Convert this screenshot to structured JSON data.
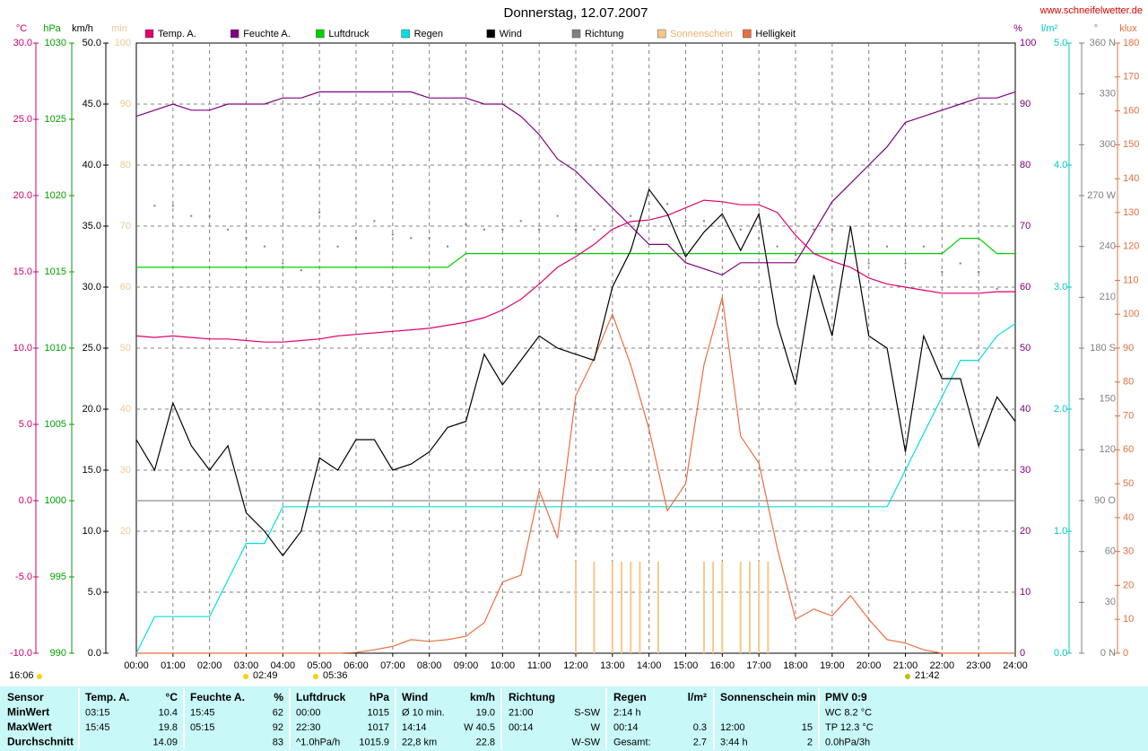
{
  "chart_data": {
    "type": "multiaxis",
    "title": "Donnerstag, 12.07.2007",
    "source": "www.schneifelwetter.de",
    "xlim": [
      0,
      24
    ],
    "xticks": [
      {
        "value": 0,
        "label": "00:00"
      },
      {
        "value": 1,
        "label": "01:00"
      },
      {
        "value": 2,
        "label": "02:00"
      },
      {
        "value": 3,
        "label": "03:00"
      },
      {
        "value": 4,
        "label": "04:00"
      },
      {
        "value": 5,
        "label": "05:00"
      },
      {
        "value": 6,
        "label": "06:00"
      },
      {
        "value": 7,
        "label": "07:00"
      },
      {
        "value": 8,
        "label": "08:00"
      },
      {
        "value": 9,
        "label": "09:00"
      },
      {
        "value": 10,
        "label": "10:00"
      },
      {
        "value": 11,
        "label": "11:00"
      },
      {
        "value": 12,
        "label": "12:00"
      },
      {
        "value": 13,
        "label": "13:00"
      },
      {
        "value": 14,
        "label": "14:00"
      },
      {
        "value": 15,
        "label": "15:00"
      },
      {
        "value": 16,
        "label": "16:00"
      },
      {
        "value": 17,
        "label": "17:00"
      },
      {
        "value": 18,
        "label": "18:00"
      },
      {
        "value": 19,
        "label": "19:00"
      },
      {
        "value": 20,
        "label": "20:00"
      },
      {
        "value": 21,
        "label": "21:00"
      },
      {
        "value": 22,
        "label": "22:00"
      },
      {
        "value": 23,
        "label": "23:00"
      },
      {
        "value": 24,
        "label": "24:00"
      }
    ],
    "grid": true,
    "axes": [
      {
        "label": "°C",
        "color": "#d0006f",
        "lim": [
          -10,
          30
        ],
        "ticks": [
          {
            "value": -10,
            "label": "-10.0"
          },
          {
            "value": -5,
            "label": "-5.0"
          },
          {
            "value": 0,
            "label": "0.0"
          },
          {
            "value": 5,
            "label": "5.0"
          },
          {
            "value": 10,
            "label": "10.0"
          },
          {
            "value": 15,
            "label": "15.0"
          },
          {
            "value": 20,
            "label": "20.0"
          },
          {
            "value": 25,
            "label": "25.0"
          },
          {
            "value": 30,
            "label": "30.0"
          }
        ]
      },
      {
        "label": "hPa",
        "color": "#00a000",
        "lim": [
          990,
          1030
        ],
        "ticks": [
          990,
          995,
          1000,
          1005,
          1010,
          1015,
          1020,
          1025,
          1030
        ]
      },
      {
        "label": "km/h",
        "color": "#000000",
        "lim": [
          0,
          50
        ],
        "ticks": [
          {
            "value": 0,
            "label": "0.0"
          },
          {
            "value": 5,
            "label": "5.0"
          },
          {
            "value": 10,
            "label": "10.0"
          },
          {
            "value": 15,
            "label": "15.0"
          },
          {
            "value": 20,
            "label": "20.0"
          },
          {
            "value": 25,
            "label": "25.0"
          },
          {
            "value": 30,
            "label": "30.0"
          },
          {
            "value": 35,
            "label": "35.0"
          },
          {
            "value": 40,
            "label": "40.0"
          },
          {
            "value": 45,
            "label": "45.0"
          },
          {
            "value": 50,
            "label": "50.0"
          }
        ]
      },
      {
        "label": "min",
        "color": "#f0c890",
        "lim": [
          0,
          100
        ],
        "ticks": [
          20,
          30,
          40,
          50,
          60,
          70,
          80,
          90,
          100
        ]
      },
      {
        "label": "%",
        "color": "#800080",
        "lim": [
          0,
          100
        ],
        "ticks": [
          0,
          10,
          20,
          30,
          40,
          50,
          60,
          70,
          80,
          90,
          100
        ]
      },
      {
        "label": "l/m²",
        "color": "#00c8c8",
        "lim": [
          0,
          5
        ],
        "ticks": [
          {
            "value": 0,
            "label": "0.0"
          },
          {
            "value": 1,
            "label": "1.0"
          },
          {
            "value": 2,
            "label": "2.0"
          },
          {
            "value": 3,
            "label": "3.0"
          },
          {
            "value": 4,
            "label": "4.0"
          },
          {
            "value": 5,
            "label": "5.0"
          }
        ]
      },
      {
        "label": "°",
        "color": "#808080",
        "lim": [
          0,
          360
        ],
        "ticks": [
          {
            "value": 0,
            "label": "0 N"
          },
          30,
          60,
          {
            "value": 90,
            "label": "90 O"
          },
          120,
          150,
          {
            "value": 180,
            "label": "180 S"
          },
          210,
          240,
          {
            "value": 270,
            "label": "270 W"
          },
          300,
          330,
          {
            "value": 360,
            "label": "360 N"
          }
        ]
      },
      {
        "label": "klux",
        "color": "#e07040",
        "lim": [
          0,
          180
        ],
        "ticks": [
          0,
          10,
          20,
          30,
          40,
          50,
          60,
          70,
          80,
          90,
          100,
          110,
          120,
          130,
          140,
          150,
          160,
          170,
          180
        ]
      }
    ],
    "x": [
      0,
      0.5,
      1,
      1.5,
      2,
      2.5,
      3,
      3.5,
      4,
      4.5,
      5,
      5.5,
      6,
      6.5,
      7,
      7.5,
      8,
      8.5,
      9,
      9.5,
      10,
      10.5,
      11,
      11.5,
      12,
      12.5,
      13,
      13.5,
      14,
      14.5,
      15,
      15.5,
      16,
      16.5,
      17,
      17.5,
      18,
      18.5,
      19,
      19.5,
      20,
      20.5,
      21,
      21.5,
      22,
      22.5,
      23,
      23.5,
      24
    ],
    "series": [
      {
        "name": "Temp. A.",
        "color": "#e0006f",
        "axis": 0,
        "style": "line",
        "values": [
          10.8,
          10.7,
          10.8,
          10.7,
          10.6,
          10.6,
          10.5,
          10.4,
          10.4,
          10.5,
          10.6,
          10.8,
          10.9,
          11.0,
          11.1,
          11.2,
          11.3,
          11.5,
          11.7,
          12.0,
          12.5,
          13.2,
          14.2,
          15.3,
          16.0,
          16.8,
          17.8,
          18.3,
          18.4,
          18.7,
          19.2,
          19.7,
          19.6,
          19.4,
          19.4,
          18.9,
          17.4,
          16.2,
          15.7,
          15.3,
          14.6,
          14.2,
          14.0,
          13.8,
          13.6,
          13.6,
          13.6,
          13.7,
          13.7
        ]
      },
      {
        "name": "Feuchte A.",
        "color": "#800080",
        "axis": 4,
        "style": "line",
        "values": [
          88,
          89,
          90,
          89,
          89,
          90,
          90,
          90,
          91,
          91,
          92,
          92,
          92,
          92,
          92,
          92,
          91,
          91,
          91,
          90,
          90,
          88,
          85,
          81,
          79,
          76,
          73,
          70,
          67,
          67,
          64,
          63,
          62,
          64,
          64,
          64,
          64,
          69,
          74,
          77,
          80,
          83,
          87,
          88,
          89,
          90,
          91,
          91,
          92
        ]
      },
      {
        "name": "Luftdruck",
        "color": "#00d000",
        "axis": 1,
        "style": "line",
        "values": [
          1015.3,
          1015.3,
          1015.3,
          1015.3,
          1015.3,
          1015.3,
          1015.3,
          1015.3,
          1015.3,
          1015.3,
          1015.3,
          1015.3,
          1015.3,
          1015.3,
          1015.3,
          1015.3,
          1015.3,
          1015.3,
          1016.2,
          1016.2,
          1016.2,
          1016.2,
          1016.2,
          1016.2,
          1016.2,
          1016.2,
          1016.2,
          1016.2,
          1016.2,
          1016.2,
          1016.2,
          1016.2,
          1016.2,
          1016.2,
          1016.2,
          1016.2,
          1016.2,
          1016.2,
          1016.2,
          1016.2,
          1016.2,
          1016.2,
          1016.2,
          1016.2,
          1016.2,
          1017.2,
          1017.2,
          1016.2,
          1016.2
        ]
      },
      {
        "name": "Regen",
        "color": "#00e0e0",
        "axis": 5,
        "style": "line",
        "values": [
          0,
          0.3,
          0.3,
          0.3,
          0.3,
          0.6,
          0.9,
          0.9,
          1.2,
          1.2,
          1.2,
          1.2,
          1.2,
          1.2,
          1.2,
          1.2,
          1.2,
          1.2,
          1.2,
          1.2,
          1.2,
          1.2,
          1.2,
          1.2,
          1.2,
          1.2,
          1.2,
          1.2,
          1.2,
          1.2,
          1.2,
          1.2,
          1.2,
          1.2,
          1.2,
          1.2,
          1.2,
          1.2,
          1.2,
          1.2,
          1.2,
          1.2,
          1.5,
          1.8,
          2.1,
          2.4,
          2.4,
          2.6,
          2.7
        ]
      },
      {
        "name": "Wind",
        "color": "#000000",
        "axis": 2,
        "style": "line",
        "values": [
          17.5,
          15,
          20.5,
          17,
          15,
          17,
          11.5,
          10,
          8,
          10,
          16,
          15,
          17.5,
          17.5,
          15,
          15.5,
          16.5,
          18.5,
          19,
          24.5,
          22,
          24,
          26,
          25,
          24.5,
          24,
          30,
          33,
          38,
          36,
          32.5,
          34.5,
          36,
          33,
          36,
          27,
          22,
          31,
          26,
          35,
          26,
          25,
          16.5,
          26,
          22.5,
          22.5,
          17,
          21,
          19
        ]
      },
      {
        "name": "Richtung",
        "color": "#808080",
        "axis": 6,
        "style": "points",
        "values": [
          270,
          264,
          264,
          258,
          258,
          250,
          245,
          240,
          230,
          226,
          260,
          240,
          245,
          255,
          247,
          245,
          245,
          240,
          253,
          250,
          250,
          255,
          250,
          258,
          250,
          250,
          255,
          258,
          265,
          265,
          255,
          255,
          258,
          250,
          245,
          240,
          235,
          250,
          250,
          240,
          230,
          240,
          230,
          240,
          225,
          230,
          225,
          215,
          220
        ]
      },
      {
        "name": "Sonnenschein",
        "color": "#f8c888",
        "axis": 3,
        "style": "bars",
        "x": [
          12,
          12.5,
          13,
          13.25,
          13.5,
          13.75,
          14.25,
          15.5,
          15.75,
          16,
          16.5,
          16.75,
          17,
          17.25
        ],
        "values": [
          15,
          15,
          15,
          15,
          15,
          15,
          15,
          15,
          15,
          15,
          15,
          15,
          15,
          15
        ]
      },
      {
        "name": "Helligkeit",
        "color": "#e87040",
        "axis": 7,
        "style": "line",
        "values": [
          0,
          0,
          0,
          0,
          0,
          0,
          0,
          0,
          0,
          0,
          0,
          0,
          0.2,
          1,
          2,
          4,
          3.5,
          4,
          5,
          9,
          21,
          23,
          48,
          34,
          76,
          87,
          100,
          85,
          66,
          42,
          50,
          85,
          105,
          64,
          56,
          31,
          10,
          13,
          11,
          17,
          10,
          4,
          3,
          1,
          0,
          0,
          0,
          0,
          0
        ]
      }
    ],
    "annotations": [
      "16:06",
      "02:49",
      "05:36",
      "21:42"
    ]
  },
  "table": {
    "rows": [
      [
        "Sensor",
        "Temp. A.",
        "°C",
        "Feuchte A.",
        "%",
        "Luftdruck",
        "hPa",
        "Wind",
        "km/h",
        "Richtung",
        null,
        "Regen",
        "l/m²",
        "Sonnenschein min",
        null,
        "PMV 0:9"
      ],
      [
        "MinWert",
        "03:15",
        "10.4",
        "15:45",
        "62",
        "00:00",
        "1015",
        "Ø 10 min.",
        "19.0",
        "21:00",
        "S-SW",
        "2:14 h",
        null,
        null,
        null,
        "WC 8.2 °C"
      ],
      [
        "MaxWert",
        "15:45",
        "19.8",
        "05:15",
        "92",
        "22:30",
        "1017",
        "14:14",
        "W 40.5",
        "00:14",
        "W",
        "00:14",
        "0.3",
        "12:00",
        "15",
        "TP 12.3 °C"
      ],
      [
        "Durchschnitt",
        null,
        "14.09",
        null,
        "83",
        "^1.0hPa/h",
        "1015.9",
        "22,8 km",
        "22.8",
        null,
        "W-SW",
        "Gesamt:",
        "2.7",
        "3:44 h",
        "2",
        "0.0hPa/3h"
      ]
    ]
  }
}
